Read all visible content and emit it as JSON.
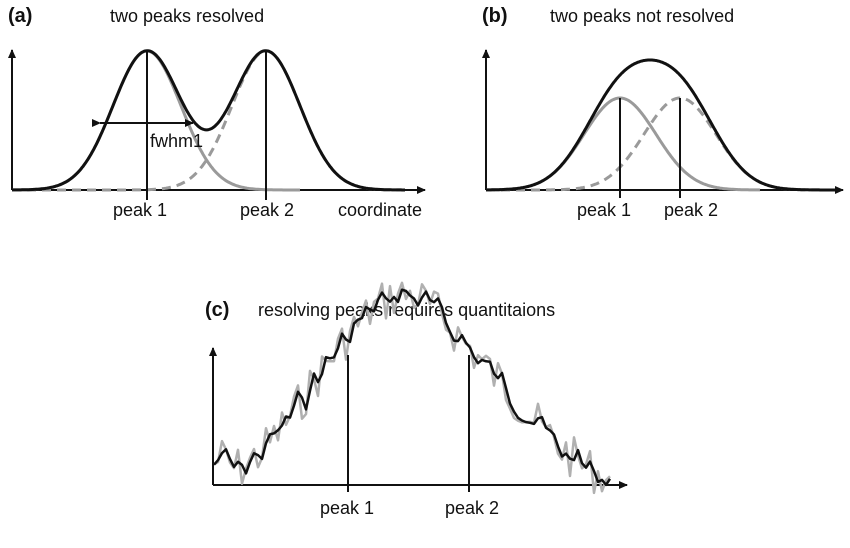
{
  "panels": {
    "a": {
      "tag": "(a)",
      "title": "two peaks resolved",
      "peak1_label": "peak 1",
      "peak2_label": "peak 2",
      "axis_label": "coordinate",
      "fwhm_label": "fwhm1"
    },
    "b": {
      "tag": "(b)",
      "title": "two peaks not resolved",
      "peak1_label": "peak 1",
      "peak2_label": "peak 2"
    },
    "c": {
      "tag": "(c)",
      "title": "resolving peaks requires quantitaions",
      "peak1_label": "peak 1",
      "peak2_label": "peak 2"
    }
  },
  "colors": {
    "sum_curve": "#111111",
    "component_curve": "#9a9a9a",
    "noisy_curve": "#b0b0b0",
    "axis": "#111111"
  }
}
